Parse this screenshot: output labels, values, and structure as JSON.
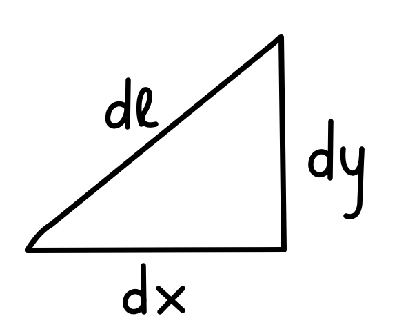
{
  "diagram": {
    "shape": "right-triangle",
    "stroke_color": "#000000",
    "background_color": "#ffffff",
    "labels": {
      "hypotenuse": "dℓ",
      "vertical": "dy",
      "horizontal": "dx"
    }
  }
}
